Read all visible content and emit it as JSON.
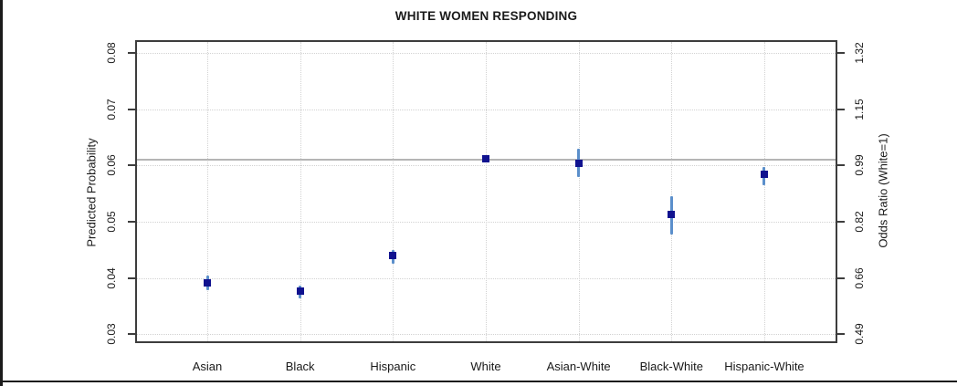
{
  "page": {
    "background": "#ffffff",
    "frame_color": "#3d3d3d",
    "edge_color": "#1b1b1b"
  },
  "chart_data": {
    "type": "scatter",
    "title": "WHITE WOMEN RESPONDING",
    "ylabel_left": "Predicted Probability",
    "ylabel_right": "Odds Ratio (White=1)",
    "categories": [
      "Asian",
      "Black",
      "Hispanic",
      "White",
      "Asian-White",
      "Black-White",
      "Hispanic-White"
    ],
    "points": [
      {
        "category": "Asian",
        "value": 0.0391,
        "ci_low": 0.0378,
        "ci_high": 0.0404
      },
      {
        "category": "Black",
        "value": 0.0376,
        "ci_low": 0.0363,
        "ci_high": 0.0386
      },
      {
        "category": "Hispanic",
        "value": 0.044,
        "ci_low": 0.0425,
        "ci_high": 0.0449
      },
      {
        "category": "White",
        "value": 0.0612,
        "ci_low": 0.0612,
        "ci_high": 0.0612
      },
      {
        "category": "Asian-White",
        "value": 0.0604,
        "ci_low": 0.058,
        "ci_high": 0.0629
      },
      {
        "category": "Black-White",
        "value": 0.0513,
        "ci_low": 0.0477,
        "ci_high": 0.0545
      },
      {
        "category": "Hispanic-White",
        "value": 0.0584,
        "ci_low": 0.0565,
        "ci_high": 0.0598
      }
    ],
    "yticks_left": [
      0.08,
      0.07,
      0.06,
      0.05,
      0.04,
      0.03
    ],
    "yticks_right": [
      1.32,
      1.15,
      0.99,
      0.82,
      0.66,
      0.49
    ],
    "ylim": [
      0.0284,
      0.0823
    ],
    "reference_line_value": 0.0612,
    "grid": "dotted",
    "marker_color": "#10128f",
    "errorbar_color": "#5b8fcb",
    "grid_color": "#d2d2d2",
    "reference_line_color": "#b5b5b5"
  }
}
